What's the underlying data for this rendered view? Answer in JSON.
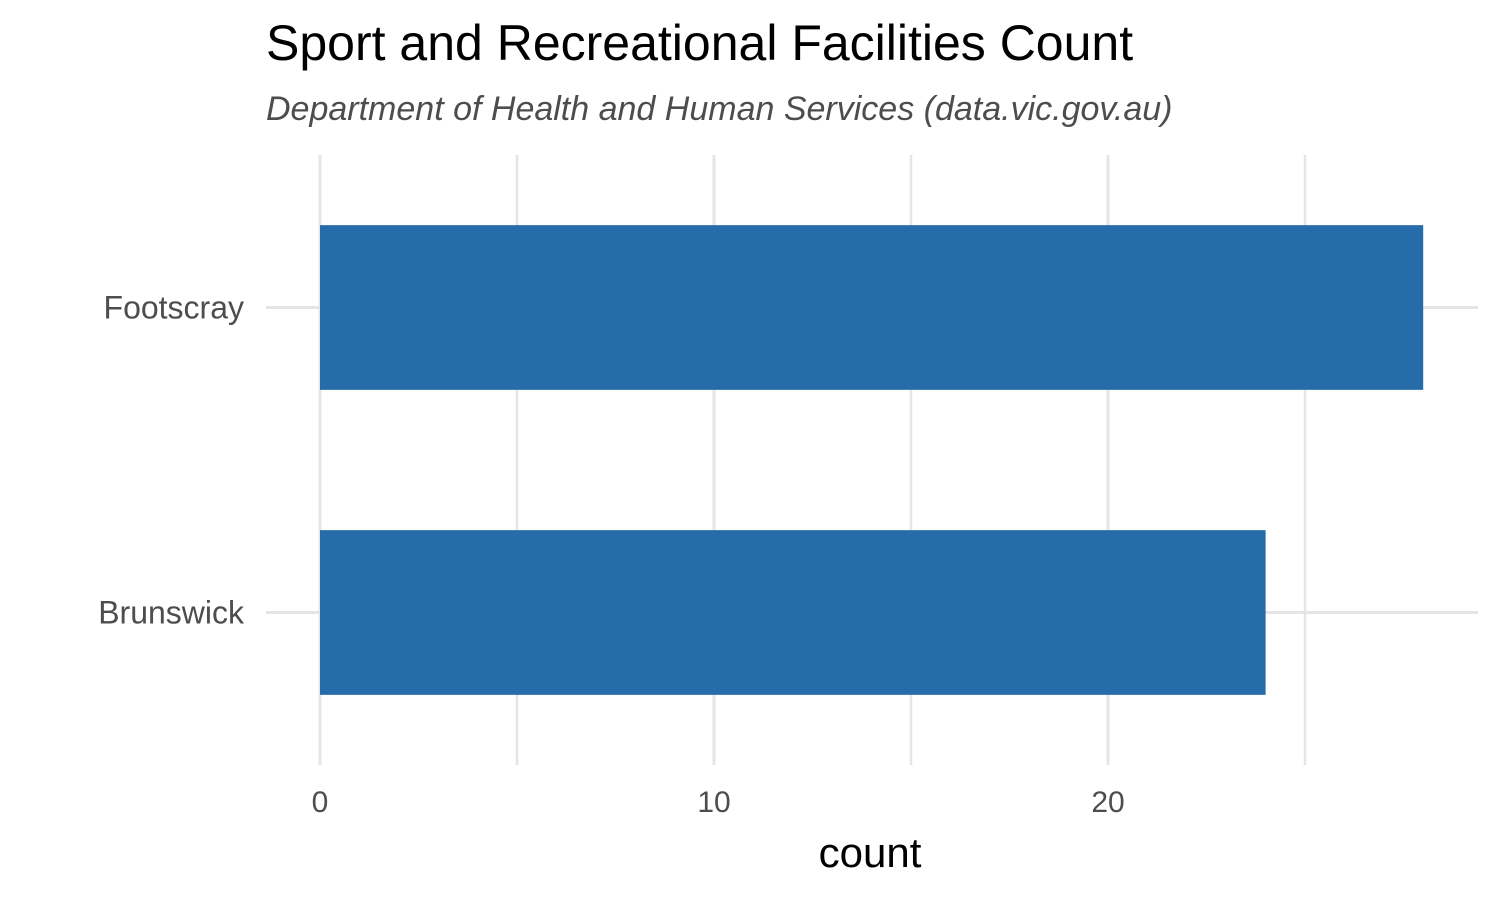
{
  "chart_data": {
    "type": "bar",
    "orientation": "horizontal",
    "title": "Sport and Recreational Facilities Count",
    "subtitle": "Department of Health and Human Services (data.vic.gov.au)",
    "xlabel": "count",
    "ylabel": "",
    "categories": [
      "Footscray",
      "Brunswick"
    ],
    "values": [
      28,
      24
    ],
    "xlim": [
      0,
      29
    ],
    "x_ticks": [
      0,
      10,
      20
    ],
    "x_minor_ticks": [
      5,
      15,
      25
    ],
    "grid": true,
    "legend": "none",
    "bar_color": "#266BAA",
    "grid_color": "#E5E5E5"
  }
}
